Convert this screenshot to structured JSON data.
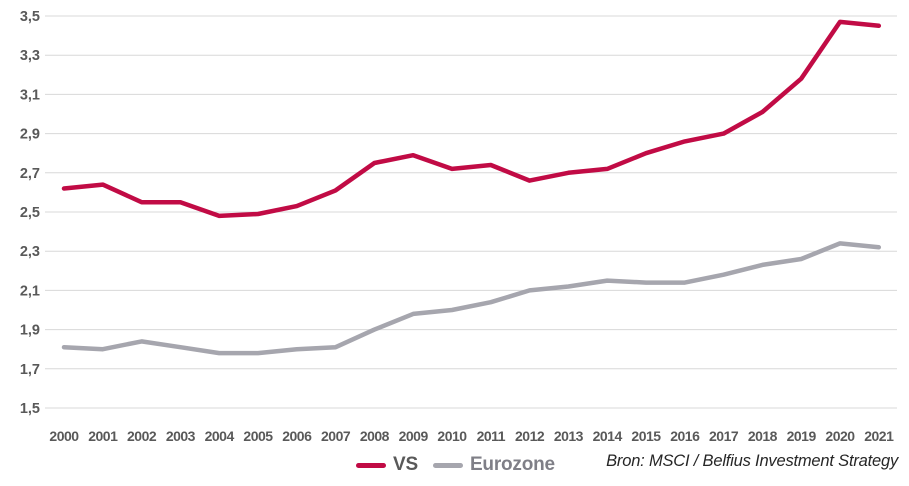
{
  "chart_data": {
    "type": "line",
    "title": "",
    "xlabel": "",
    "ylabel": "",
    "x": [
      2000,
      2001,
      2002,
      2003,
      2004,
      2005,
      2006,
      2007,
      2008,
      2009,
      2010,
      2011,
      2012,
      2013,
      2014,
      2015,
      2016,
      2017,
      2018,
      2019,
      2020,
      2021
    ],
    "series": [
      {
        "name": "VS",
        "color": "#C10B45",
        "values": [
          2.62,
          2.64,
          2.55,
          2.55,
          2.48,
          2.49,
          2.53,
          2.61,
          2.75,
          2.79,
          2.72,
          2.74,
          2.66,
          2.7,
          2.72,
          2.8,
          2.86,
          2.9,
          3.01,
          3.18,
          3.47,
          3.45
        ]
      },
      {
        "name": "Eurozone",
        "color": "#A6A6AE",
        "values": [
          1.81,
          1.8,
          1.84,
          1.81,
          1.78,
          1.78,
          1.8,
          1.81,
          1.9,
          1.98,
          2.0,
          2.04,
          2.1,
          2.12,
          2.15,
          2.14,
          2.14,
          2.18,
          2.23,
          2.26,
          2.34,
          2.32
        ]
      }
    ],
    "ylim": [
      1.5,
      3.5
    ],
    "ytick_step": 0.2,
    "ytick_labels_top_to_bottom": [
      "3,5",
      "3,3",
      "3,1",
      "2,9",
      "2,7",
      "2,5",
      "2,3",
      "2,1",
      "1,9",
      "1,7",
      "1,5"
    ],
    "xtick_labels": [
      "2000",
      "2001",
      "2002",
      "2003",
      "2004",
      "2005",
      "2006",
      "2007",
      "2008",
      "2009",
      "2010",
      "2011",
      "2012",
      "2013",
      "2014",
      "2015",
      "2016",
      "2017",
      "2018",
      "2019",
      "2020",
      "2021"
    ],
    "grid": "horizontal",
    "legend_position": "bottom"
  },
  "legend": {
    "items": [
      {
        "label": "VS",
        "line_color": "#C10B45",
        "text_color": "#595959"
      },
      {
        "label": "Eurozone",
        "line_color": "#A6A6AE",
        "text_color": "#7F7F87"
      }
    ]
  },
  "source_note": "Bron: MSCI / Belfius Investment Strategy",
  "colors": {
    "background": "#FFFFFF",
    "gridline": "#D8D8D8",
    "axis_label": "#595959",
    "vs_line": "#C10B45",
    "eurozone_line": "#A6A6AE",
    "source_text": "#262626"
  }
}
